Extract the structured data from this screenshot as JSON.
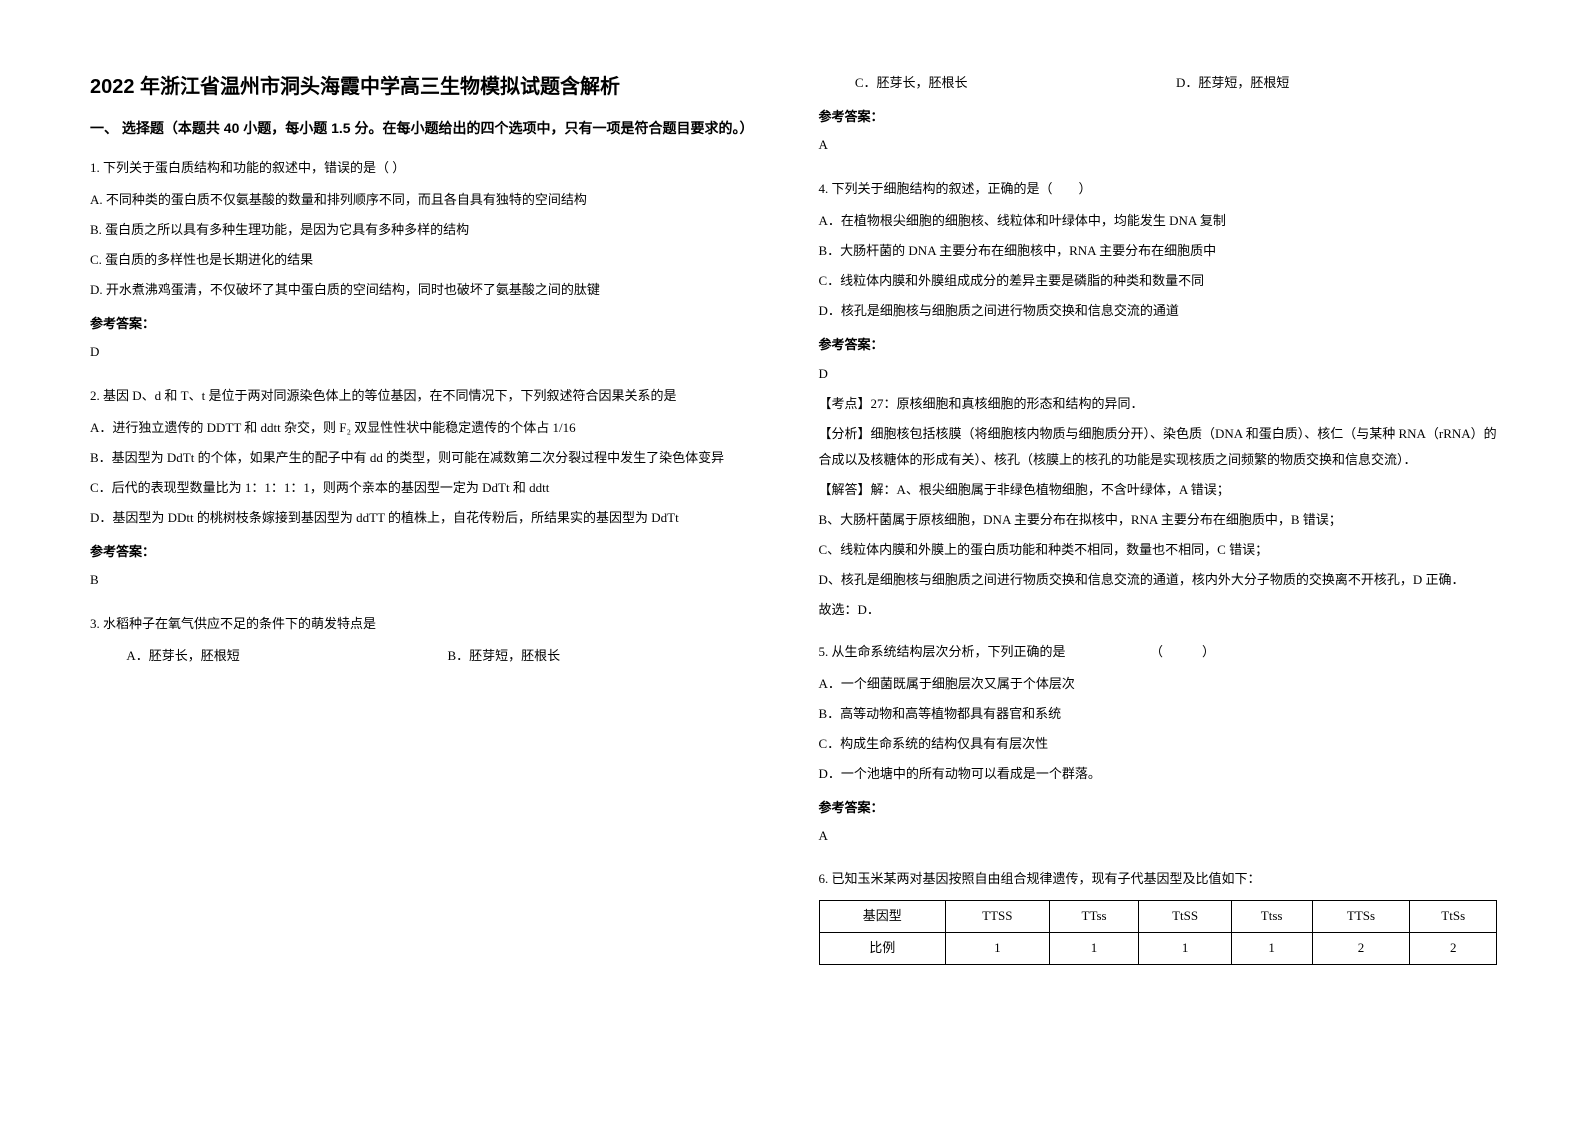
{
  "title": "2022 年浙江省温州市洞头海霞中学高三生物模拟试题含解析",
  "section1": "一、 选择题（本题共 40 小题，每小题 1.5 分。在每小题给出的四个选项中，只有一项是符合题目要求的。）",
  "q1": {
    "stem": "1. 下列关于蛋白质结构和功能的叙述中，错误的是（   ）",
    "A": "A. 不同种类的蛋白质不仅氨基酸的数量和排列顺序不同，而且各自具有独特的空间结构",
    "B": "B. 蛋白质之所以具有多种生理功能，是因为它具有多种多样的结构",
    "C": "C. 蛋白质的多样性也是长期进化的结果",
    "D": "D. 开水煮沸鸡蛋清，不仅破坏了其中蛋白质的空间结构，同时也破坏了氨基酸之间的肽键",
    "ans_label": "参考答案：",
    "ans": "D"
  },
  "q2": {
    "stem": "2. 基因 D、d 和 T、t 是位于两对同源染色体上的等位基因，在不同情况下，下列叙述符合因果关系的是",
    "A": "A．进行独立遗传的 DDTT 和 ddtt 杂交，则 F₂ 双显性性状中能稳定遗传的个体占 1/16",
    "B": "B．基因型为 DdTt 的个体，如果产生的配子中有 dd 的类型，则可能在减数第二次分裂过程中发生了染色体变异",
    "C": "C．后代的表现型数量比为 1：1：1：1，则两个亲本的基因型一定为 DdTt 和 ddtt",
    "D": "D．基因型为 DDtt 的桃树枝条嫁接到基因型为 ddTT 的植株上，自花传粉后，所结果实的基因型为 DdTt",
    "ans_label": "参考答案：",
    "ans": "B"
  },
  "q3": {
    "stem": "3. 水稻种子在氧气供应不足的条件下的萌发特点是",
    "A": "A．胚芽长，胚根短",
    "B": "B．胚芽短，胚根长",
    "C": "C．胚芽长，胚根长",
    "D": "D．胚芽短，胚根短",
    "ans_label": "参考答案：",
    "ans": "A"
  },
  "q4": {
    "stem": "4. 下列关于细胞结构的叙述，正确的是（　　）",
    "A": "A．在植物根尖细胞的细胞核、线粒体和叶绿体中，均能发生 DNA 复制",
    "B": "B．大肠杆菌的 DNA 主要分布在细胞核中，RNA 主要分布在细胞质中",
    "C": "C．线粒体内膜和外膜组成成分的差异主要是磷脂的种类和数量不同",
    "D": "D．核孔是细胞核与细胞质之间进行物质交换和信息交流的通道",
    "ans_label": "参考答案：",
    "ans": "D",
    "point": "【考点】27：原核细胞和真核细胞的形态和结构的异同．",
    "analysis": "【分析】细胞核包括核膜（将细胞核内物质与细胞质分开）、染色质（DNA 和蛋白质）、核仁（与某种 RNA（rRNA）的合成以及核糖体的形成有关）、核孔（核膜上的核孔的功能是实现核质之间频繁的物质交换和信息交流）．",
    "solve": "【解答】解：A、根尖细胞属于非绿色植物细胞，不含叶绿体，A 错误；",
    "solveB": "B、大肠杆菌属于原核细胞，DNA 主要分布在拟核中，RNA 主要分布在细胞质中，B 错误；",
    "solveC": "C、线粒体内膜和外膜上的蛋白质功能和种类不相同，数量也不相同，C 错误；",
    "solveD": "D、核孔是细胞核与细胞质之间进行物质交换和信息交流的通道，核内外大分子物质的交换离不开核孔，D 正确．",
    "pick": "故选：D．"
  },
  "q5": {
    "stem": "5. 从生命系统结构层次分析，下列正确的是　　　　　　　（　　　）",
    "A": "A．一个细菌既属于细胞层次又属于个体层次",
    "B": "B．高等动物和高等植物都具有器官和系统",
    "C": "C．构成生命系统的结构仅具有有层次性",
    "D": "D．一个池塘中的所有动物可以看成是一个群落。",
    "ans_label": "参考答案：",
    "ans": "A"
  },
  "q6": {
    "stem": "6. 已知玉米某两对基因按照自由组合规律遗传，现有子代基因型及比值如下：",
    "table": {
      "header": [
        "基因型",
        "TTSS",
        "TTss",
        "TtSS",
        "Ttss",
        "TTSs",
        "TtSs"
      ],
      "row": [
        "比例",
        "1",
        "1",
        "1",
        "1",
        "2",
        "2"
      ]
    }
  },
  "styling": {
    "page_bg": "#ffffff",
    "text_color": "#000000",
    "title_fontsize": 20,
    "body_fontsize": 13,
    "section_fontsize": 14,
    "line_height": 2.0,
    "table_border": "#000000"
  }
}
